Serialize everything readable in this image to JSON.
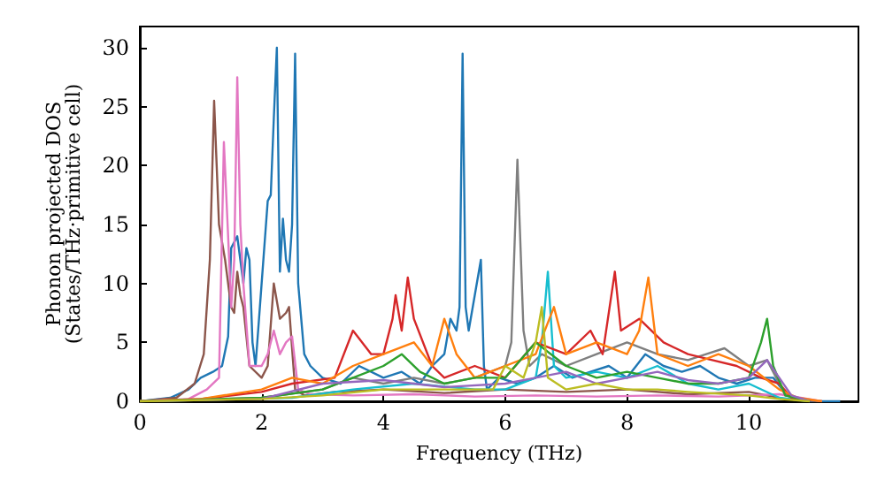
{
  "chart_data": {
    "type": "line",
    "xlabel": "Frequency (THz)",
    "ylabel": "Phonon projected DOS\n(States/THz·primitive cell)",
    "xlim": [
      0,
      11.8
    ],
    "xticks": [
      0,
      2,
      4,
      6,
      8,
      10
    ],
    "ylim": [
      0,
      31.8
    ],
    "yticks": [
      0,
      5,
      10,
      15,
      20,
      25,
      30
    ],
    "grid": false,
    "marker": "none",
    "line_style": "solid",
    "series": [
      {
        "color": "#1f77b4",
        "x": [
          0,
          0.5,
          0.8,
          1.0,
          1.2,
          1.35,
          1.45,
          1.5,
          1.6,
          1.7,
          1.75,
          1.8,
          1.85,
          1.9,
          2.0,
          2.1,
          2.15,
          2.2,
          2.25,
          2.3,
          2.35,
          2.4,
          2.45,
          2.5,
          2.55,
          2.6,
          2.7,
          2.8,
          3.0,
          3.3,
          3.6,
          4.0,
          4.3,
          4.6,
          4.8,
          5.0,
          5.1,
          5.2,
          5.25,
          5.3,
          5.35,
          5.4,
          5.5,
          5.6,
          5.65,
          5.7,
          5.9,
          6.2,
          6.5,
          6.8,
          7.1,
          7.4,
          7.7,
          8.0,
          8.3,
          8.6,
          8.9,
          9.2,
          9.5,
          9.8,
          10.1,
          10.4,
          10.55,
          10.7,
          11.0,
          11.5
        ],
        "values": [
          0,
          0.3,
          1,
          2,
          2.5,
          3,
          5.5,
          13,
          14,
          10,
          13,
          12,
          5,
          3,
          10,
          17,
          17.5,
          24,
          30,
          11,
          15.5,
          12,
          11,
          15,
          29.5,
          10,
          4,
          3,
          2,
          1.5,
          3,
          2,
          2.5,
          1.5,
          3,
          4,
          7,
          6,
          8,
          29.5,
          8,
          6,
          9,
          12,
          3,
          1,
          2,
          1.5,
          2,
          3,
          2,
          2.5,
          3,
          2,
          4,
          3,
          2.5,
          3,
          2,
          1.5,
          2,
          2,
          1,
          0.3,
          0,
          0
        ]
      },
      {
        "color": "#8c564b",
        "x": [
          0,
          0.6,
          0.9,
          1.05,
          1.15,
          1.22,
          1.3,
          1.4,
          1.5,
          1.55,
          1.6,
          1.65,
          1.7,
          1.8,
          2.0,
          2.1,
          2.2,
          2.3,
          2.4,
          2.45,
          2.55,
          2.7,
          3.2,
          4,
          5,
          6,
          7,
          8,
          9,
          10,
          10.6,
          11.2
        ],
        "values": [
          0,
          0.3,
          1.5,
          4,
          12,
          25.5,
          15,
          12,
          8,
          7.5,
          11,
          9,
          8,
          3,
          2,
          3,
          10,
          7,
          7.5,
          8,
          1,
          0.5,
          0.8,
          1,
          0.7,
          1,
          0.8,
          1,
          0.6,
          0.8,
          0.2,
          0
        ]
      },
      {
        "color": "#e377c2",
        "x": [
          0,
          0.8,
          1.1,
          1.3,
          1.38,
          1.45,
          1.5,
          1.55,
          1.6,
          1.65,
          1.7,
          1.8,
          2.0,
          2.1,
          2.2,
          2.3,
          2.4,
          2.5,
          2.6,
          2.8,
          3.5,
          4.5,
          5.5,
          6.5,
          7.5,
          8.5,
          9.5,
          10.5,
          11.2
        ],
        "values": [
          0,
          0.2,
          1,
          2,
          22,
          14,
          8,
          12,
          27.5,
          15,
          10,
          3,
          3,
          4,
          6,
          4,
          5,
          5.5,
          1,
          0.6,
          0.5,
          0.6,
          0.4,
          0.5,
          0.4,
          0.5,
          0.4,
          0.6,
          0
        ]
      },
      {
        "color": "#7f7f7f",
        "x": [
          0,
          2,
          3,
          3.5,
          4,
          4.5,
          5,
          5.5,
          6.0,
          6.1,
          6.2,
          6.3,
          6.4,
          6.6,
          7,
          7.5,
          8,
          8.5,
          9,
          9.3,
          9.6,
          10,
          10.3,
          10.6,
          11
        ],
        "values": [
          0,
          0.3,
          1,
          2,
          1.5,
          2,
          1.5,
          2,
          3,
          5,
          20.5,
          6,
          3,
          4,
          3,
          4,
          5,
          4,
          3.5,
          4,
          4.5,
          3,
          3.5,
          0.5,
          0
        ]
      },
      {
        "color": "#17becf",
        "x": [
          0,
          2.5,
          3.5,
          4.5,
          5.5,
          6,
          6.5,
          6.6,
          6.7,
          6.8,
          7,
          7.5,
          8,
          8.5,
          9,
          9.5,
          10,
          10.5,
          11
        ],
        "values": [
          0,
          0.3,
          1,
          1.5,
          1,
          1,
          2,
          5,
          11,
          3,
          2,
          2.5,
          2,
          3,
          1.5,
          1,
          1.5,
          0.3,
          0
        ]
      },
      {
        "color": "#d62728",
        "x": [
          0,
          1,
          2,
          2.5,
          3.2,
          3.5,
          3.8,
          4.0,
          4.15,
          4.2,
          4.3,
          4.4,
          4.5,
          4.8,
          5,
          5.5,
          6,
          6.5,
          7,
          7.4,
          7.6,
          7.8,
          7.9,
          8.2,
          8.6,
          9,
          9.4,
          9.8,
          10.2,
          10.5,
          10.7,
          11
        ],
        "values": [
          0,
          0.2,
          0.8,
          1.5,
          2,
          6,
          4,
          4,
          7,
          9,
          6,
          10.5,
          7,
          3,
          2,
          3,
          2,
          5,
          4,
          6,
          4,
          11,
          6,
          7,
          5,
          4,
          3.5,
          3,
          2,
          1.5,
          0.3,
          0
        ]
      },
      {
        "color": "#ff7f0e",
        "x": [
          0,
          1,
          2,
          2.5,
          3,
          3.5,
          4,
          4.5,
          4.8,
          5,
          5.2,
          5.5,
          6,
          6.5,
          6.8,
          7,
          7.5,
          8,
          8.2,
          8.35,
          8.5,
          9,
          9.5,
          10,
          10.5,
          10.8,
          11.2
        ],
        "values": [
          0,
          0.2,
          1,
          2,
          1.5,
          3,
          4,
          5,
          3,
          7,
          4,
          2,
          3,
          4,
          8,
          4,
          5,
          4,
          6,
          10.5,
          4,
          3,
          4,
          3,
          1,
          0.3,
          0
        ]
      },
      {
        "color": "#2ca02c",
        "x": [
          0,
          2,
          3,
          3.5,
          4,
          4.3,
          4.6,
          5,
          5.5,
          6,
          6.5,
          7,
          7.5,
          8,
          8.5,
          9,
          9.5,
          10,
          10.2,
          10.3,
          10.4,
          10.6,
          11
        ],
        "values": [
          0,
          0.3,
          1,
          2,
          3,
          4,
          2.5,
          1.5,
          2,
          2,
          5,
          3,
          2,
          2.5,
          2,
          1.5,
          1.5,
          2,
          5,
          7,
          3,
          0.5,
          0
        ]
      },
      {
        "color": "#9467bd",
        "x": [
          0,
          2,
          3,
          4,
          5,
          6,
          6.5,
          7,
          7.5,
          8,
          8.5,
          9,
          9.5,
          10,
          10.3,
          10.5,
          10.7,
          11
        ],
        "values": [
          0,
          0.2,
          1.5,
          1.8,
          1.2,
          1.5,
          2,
          2.5,
          1.5,
          2,
          2.5,
          1.8,
          1.5,
          2,
          3.5,
          2,
          0.5,
          0
        ]
      },
      {
        "color": "#bcbd22",
        "x": [
          0,
          2,
          3,
          4,
          5,
          5.8,
          6,
          6.3,
          6.5,
          6.6,
          6.7,
          7,
          7.5,
          8,
          8.5,
          9,
          10,
          10.5,
          11
        ],
        "values": [
          0,
          0.2,
          0.5,
          1,
          1,
          1,
          3,
          2,
          5,
          8,
          2,
          1,
          1.5,
          1,
          1,
          0.8,
          0.5,
          0.2,
          0
        ]
      }
    ]
  }
}
